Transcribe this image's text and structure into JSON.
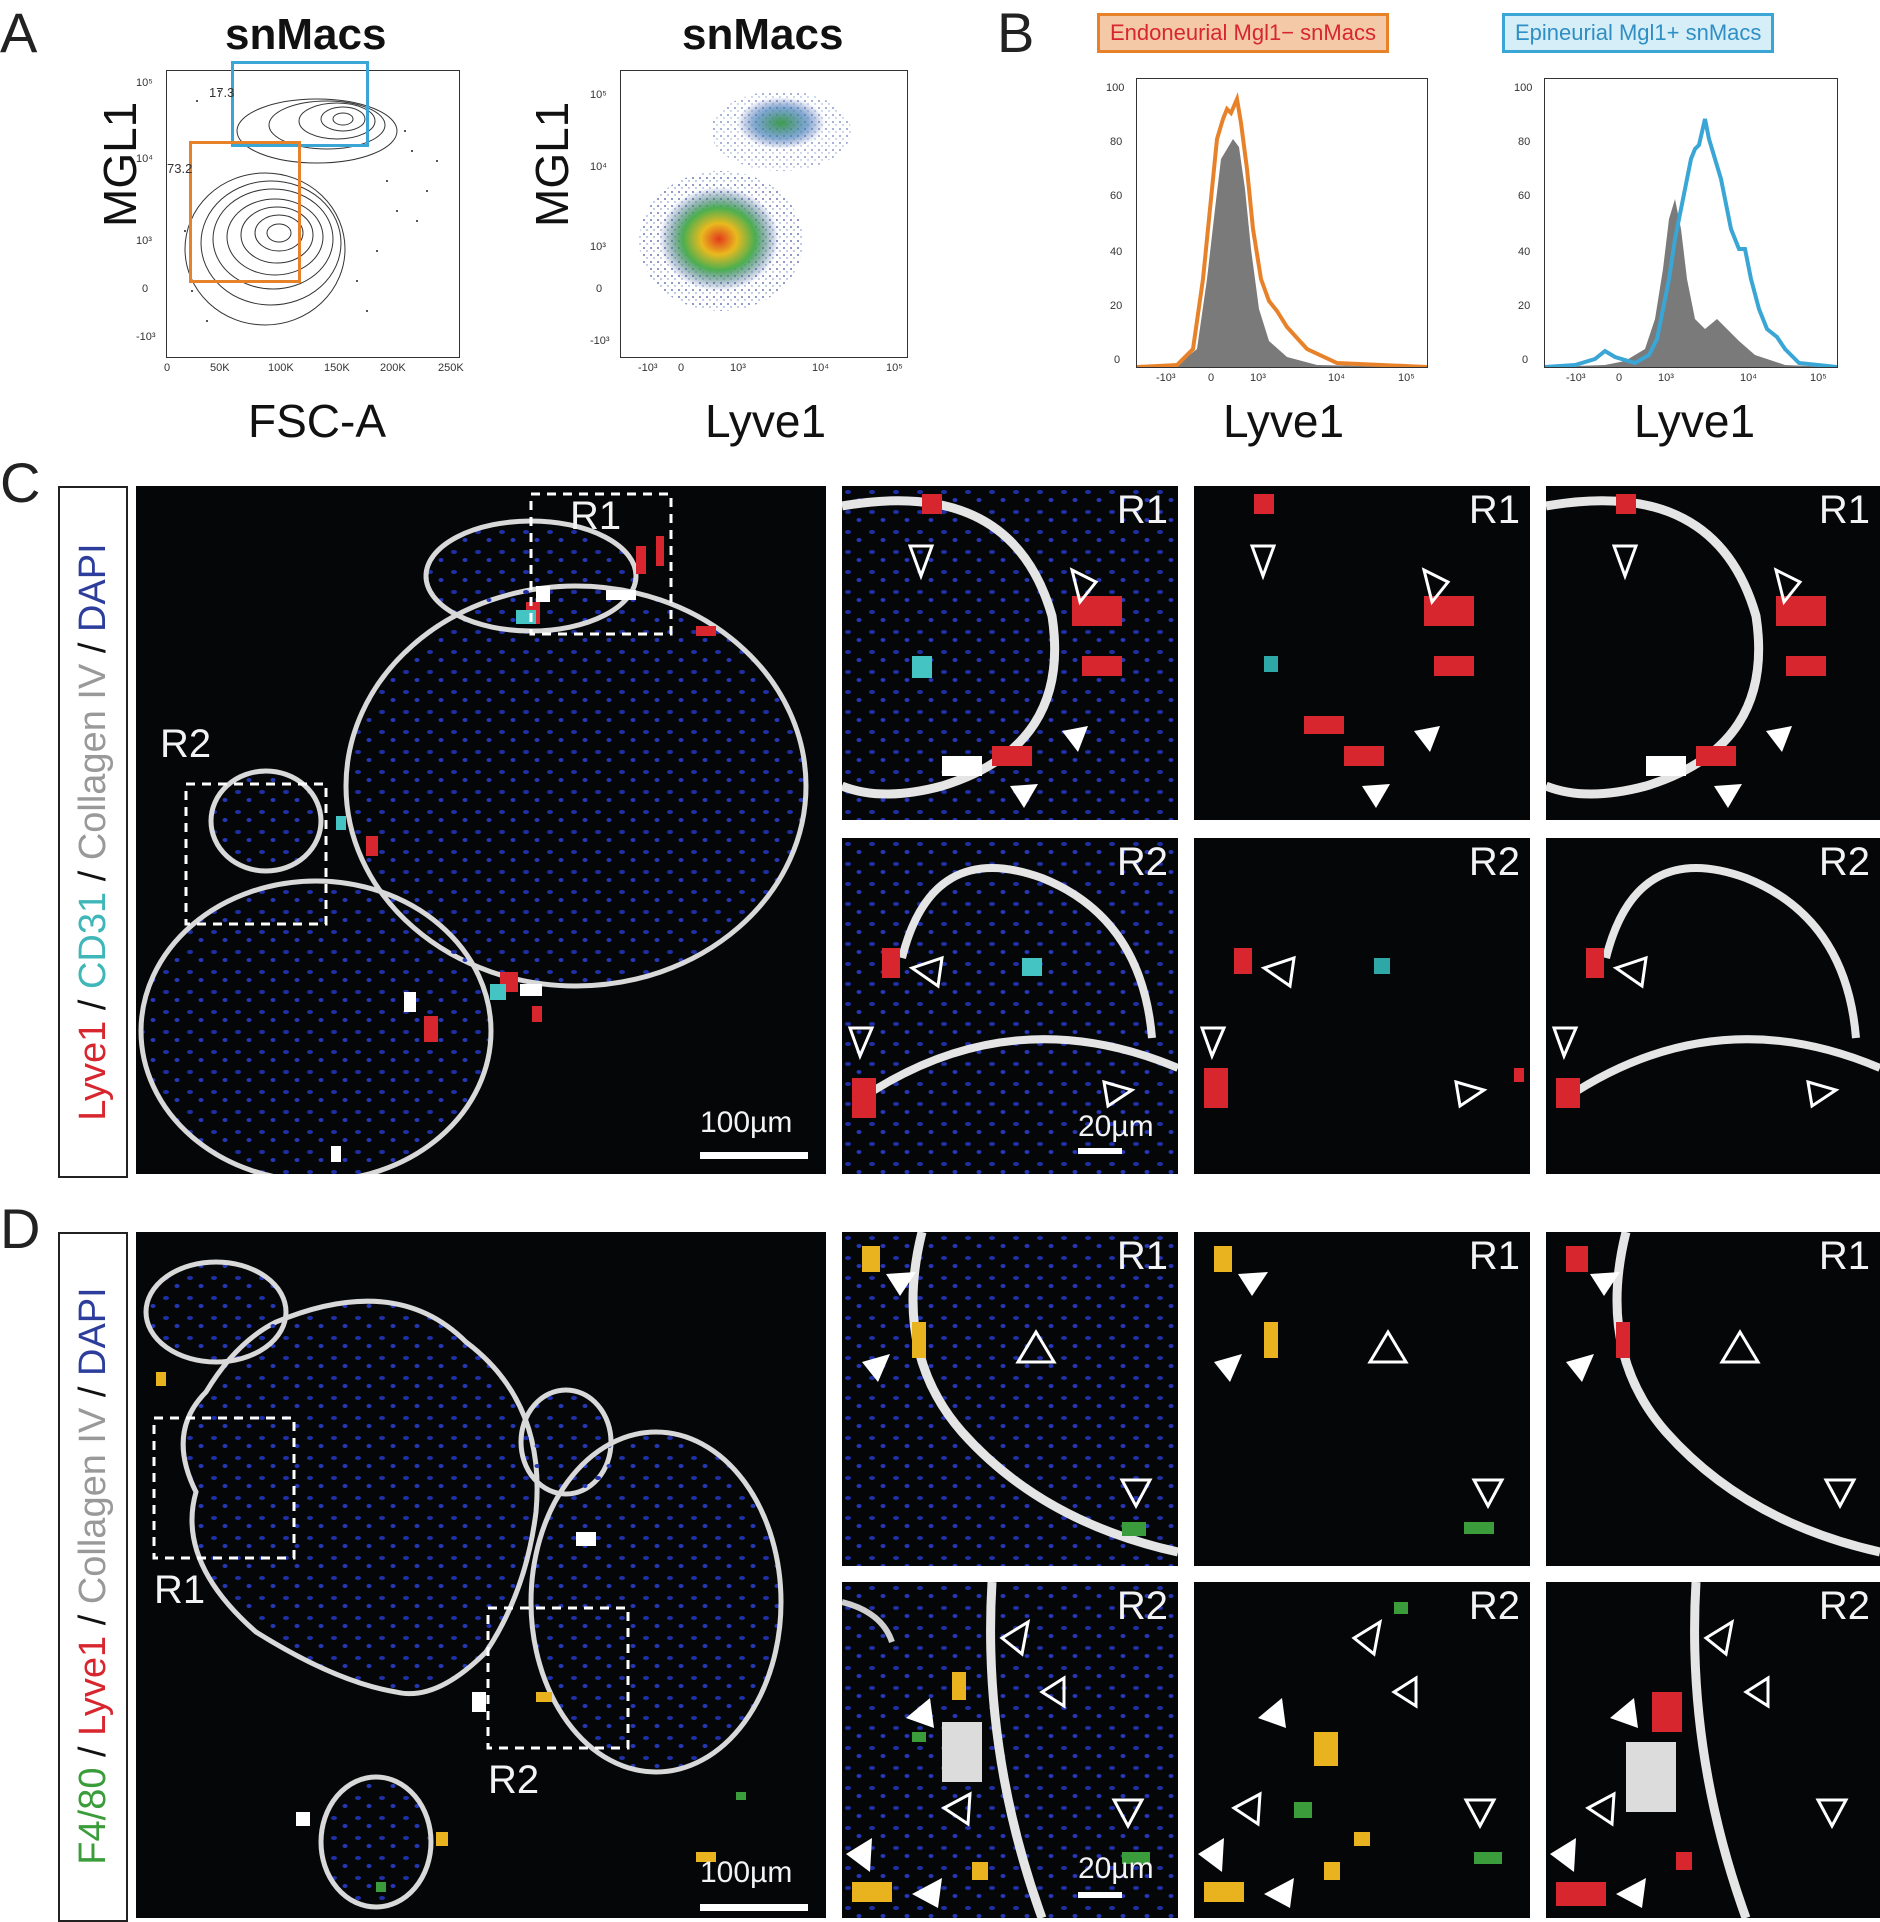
{
  "panels": {
    "A": {
      "label": "A",
      "contour": {
        "title": "snMacs",
        "xlabel": "FSC-A",
        "ylabel": "MGL1",
        "xticks": [
          "0",
          "50K",
          "100K",
          "150K",
          "200K",
          "250K"
        ],
        "yticks": [
          "10⁵",
          "10⁴",
          "10³",
          "0",
          "-10³"
        ],
        "gate_upper_pct": "17.3",
        "gate_lower_pct": "73.2",
        "gate_upper_color": "#3aa6d6",
        "gate_lower_color": "#e8822a"
      },
      "density": {
        "title": "snMacs",
        "xlabel": "Lyve1",
        "ylabel": "MGL1",
        "xticks": [
          "-10³",
          "0",
          "10³",
          "10⁴",
          "10⁵"
        ],
        "yticks": [
          "10⁵",
          "10⁴",
          "10³",
          "0",
          "-10³"
        ]
      }
    },
    "B": {
      "label": "B",
      "hist1": {
        "legend": "Endoneurial Mgl1− snMacs",
        "xlabel": "Lyve1",
        "legend_color": "#e8822a",
        "yticks": [
          "100",
          "80",
          "60",
          "40",
          "20",
          "0"
        ],
        "xticks": [
          "-10³",
          "0",
          "10³",
          "10⁴",
          "10⁵"
        ]
      },
      "hist2": {
        "legend": "Epineurial Mgl1+ snMacs",
        "xlabel": "Lyve1",
        "legend_color": "#3aa6d6",
        "yticks": [
          "100",
          "80",
          "60",
          "40",
          "20",
          "0"
        ],
        "xticks": [
          "-10³",
          "0",
          "10³",
          "10⁴",
          "10⁵"
        ]
      }
    },
    "C": {
      "label": "C",
      "legend": [
        {
          "text": "Lyve1",
          "color": "#d8262e"
        },
        {
          "text": " / ",
          "color": "#222222"
        },
        {
          "text": "CD31",
          "color": "#3fb6b8"
        },
        {
          "text": " / ",
          "color": "#222222"
        },
        {
          "text": "Collagen IV",
          "color": "#999999"
        },
        {
          "text": " / ",
          "color": "#222222"
        },
        {
          "text": "DAPI",
          "color": "#2d3d9c"
        }
      ],
      "roi1": "R1",
      "roi2": "R2",
      "scalebar_main": "100µm",
      "scalebar_zoom": "20µm"
    },
    "D": {
      "label": "D",
      "legend": [
        {
          "text": "F4/80",
          "color": "#3a9c3a"
        },
        {
          "text": " / ",
          "color": "#222222"
        },
        {
          "text": "Lyve1",
          "color": "#d8262e"
        },
        {
          "text": " / ",
          "color": "#222222"
        },
        {
          "text": "Collagen IV",
          "color": "#999999"
        },
        {
          "text": " / ",
          "color": "#222222"
        },
        {
          "text": "DAPI",
          "color": "#2d3d9c"
        }
      ],
      "roi1": "R1",
      "roi2": "R2",
      "scalebar_main": "100µm",
      "scalebar_zoom": "20µm"
    }
  }
}
